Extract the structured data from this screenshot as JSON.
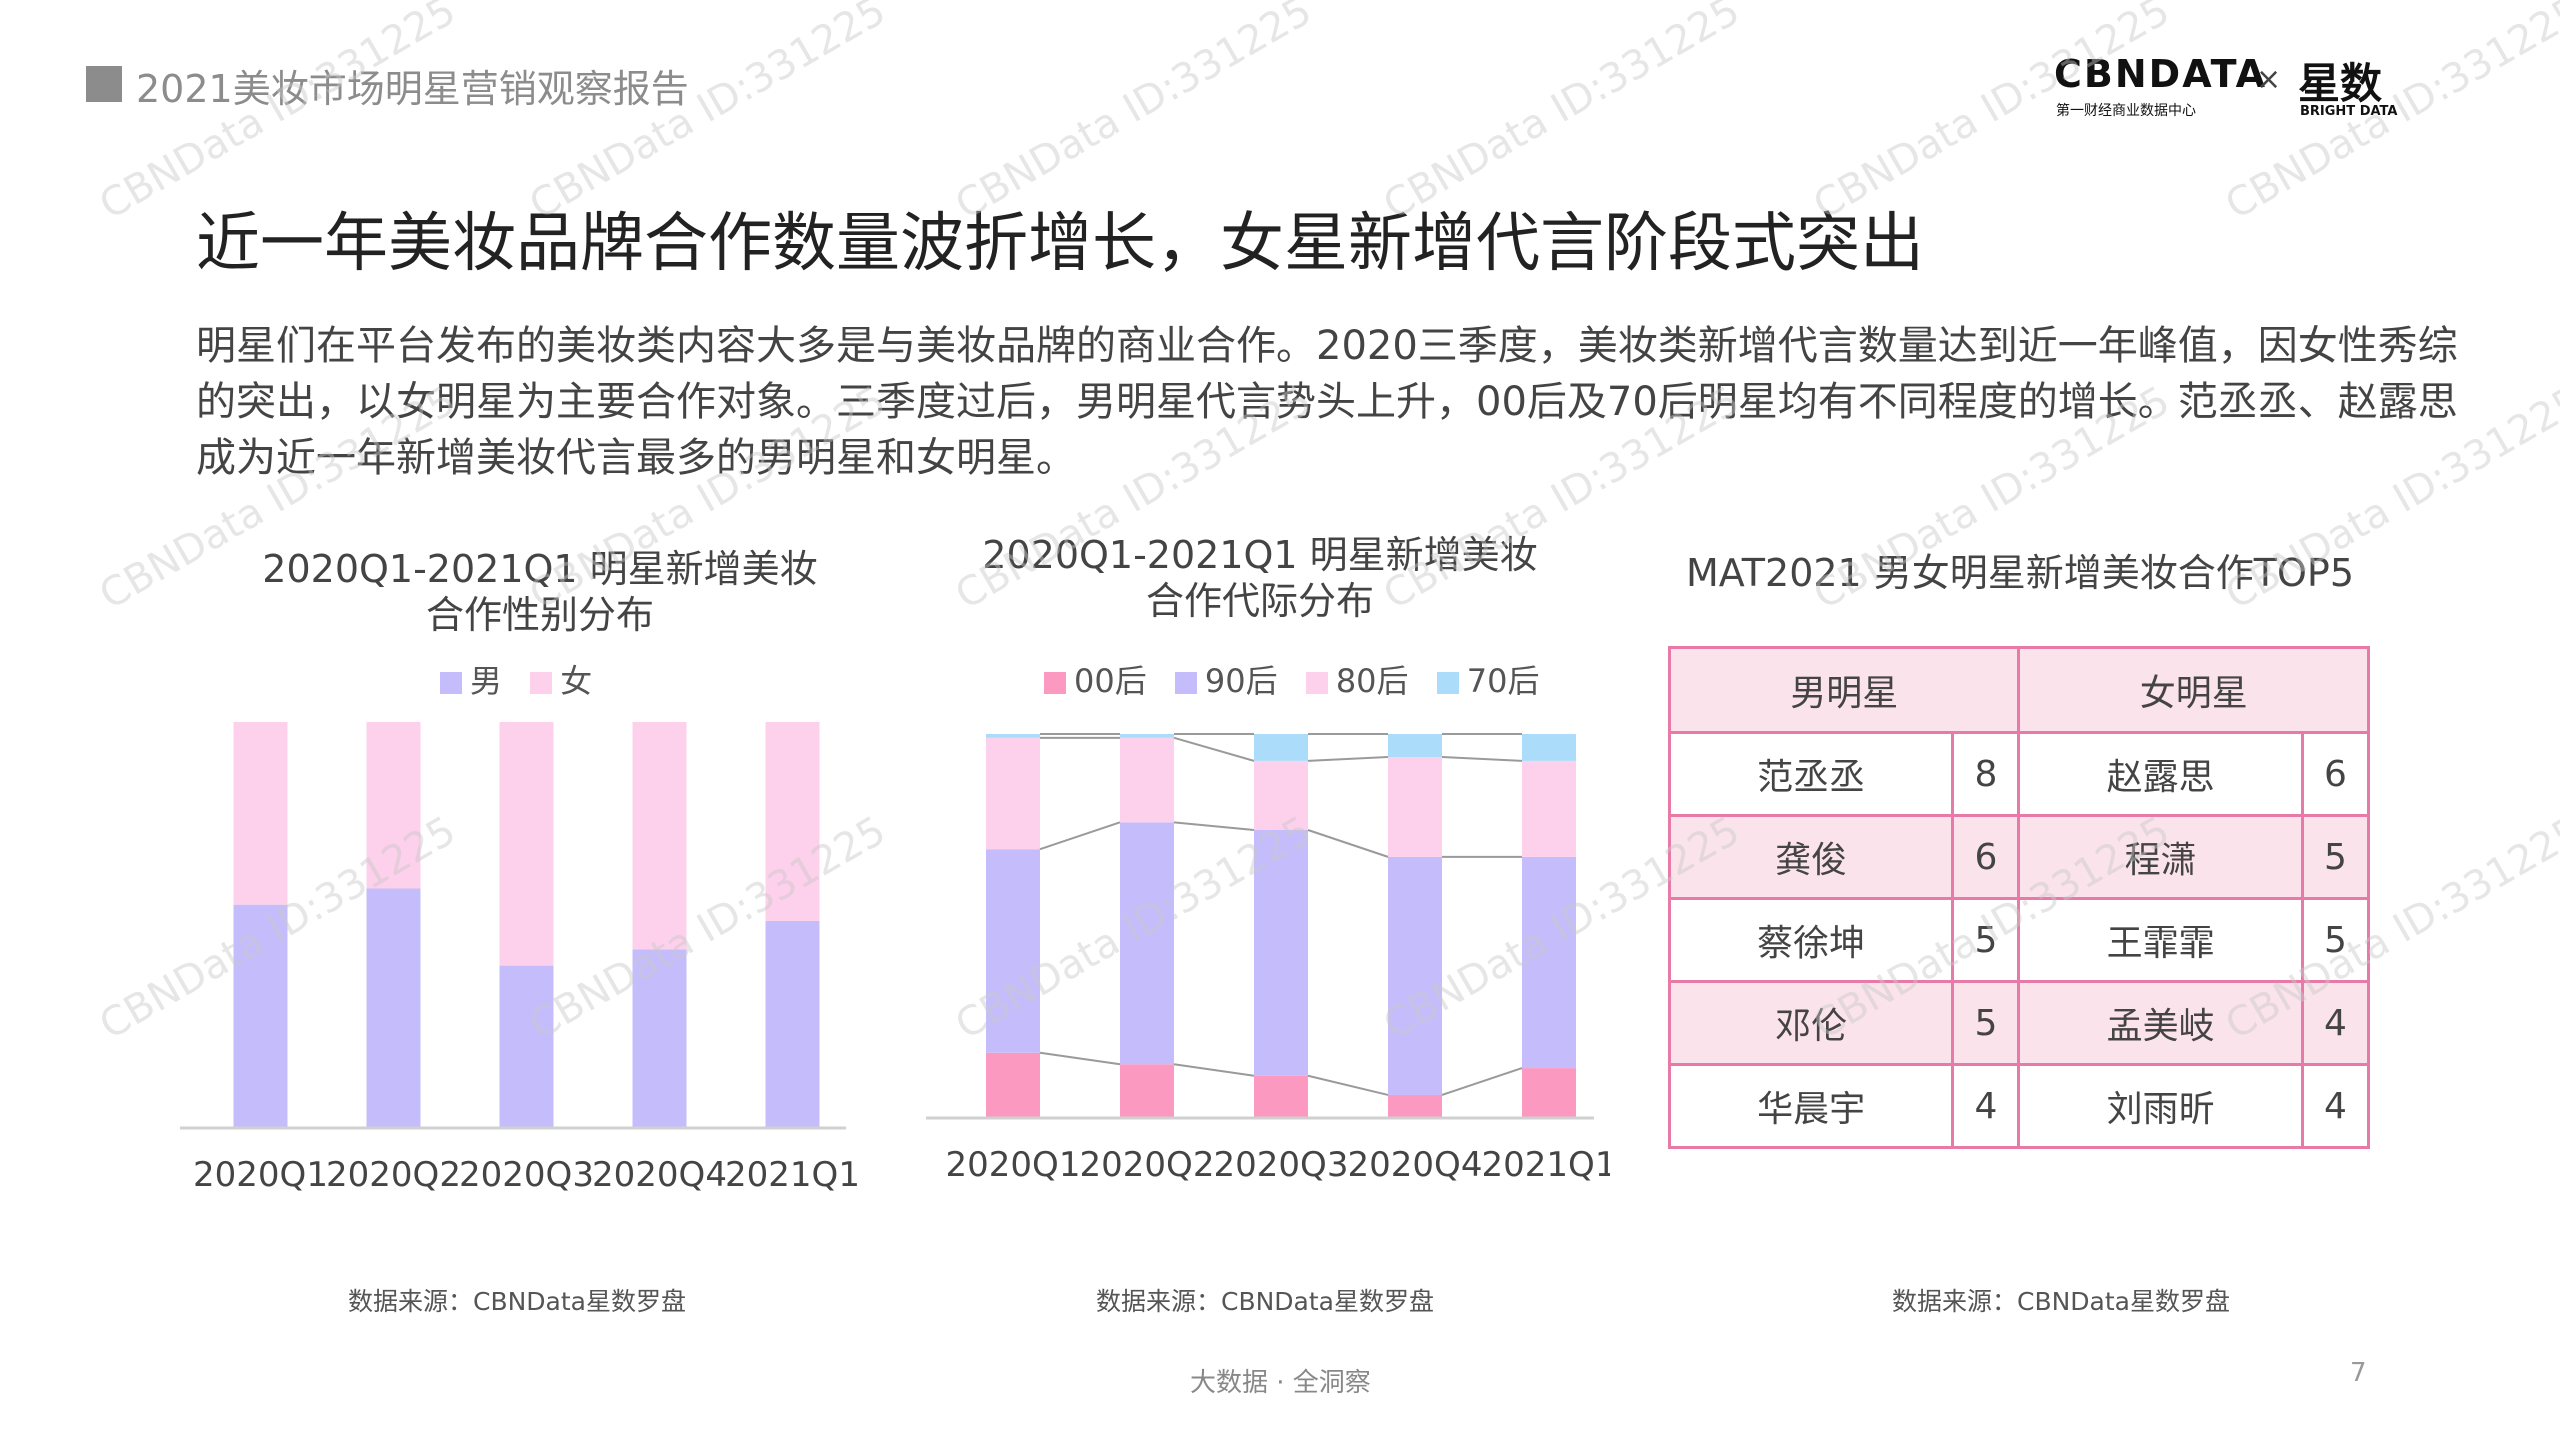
{
  "header": {
    "report_title": "2021美妆市场明星营销观察报告"
  },
  "logo": {
    "cbn": "CBNDATA",
    "cbn_sub": "第一财经商业数据中心",
    "times": "×",
    "xs": "星数",
    "xs_sub": "BRIGHT DATA"
  },
  "main_title": "近一年美妆品牌合作数量波折增长，女星新增代言阶段式突出",
  "intro": "明星们在平台发布的美妆类内容大多是与美妆品牌的商业合作。2020三季度，美妆类新增代言数量达到近一年峰值，因女性秀综的突出，以女明星为主要合作对象。三季度过后，男明星代言势头上升，00后及70后明星均有不同程度的增长。范丞丞、赵露思成为近一年新增美妆代言最多的男明星和女明星。",
  "watermark": "CBNData ID:331225",
  "colors": {
    "male": "#c5bdfb",
    "female": "#fdd0ec",
    "post00": "#fb99c1",
    "post90": "#c5bdfb",
    "post80": "#fdd0ec",
    "post70": "#abdcfa",
    "table_border": "#e87aa7",
    "table_fill": "#fbe3ec"
  },
  "chart_data": [
    {
      "type": "bar",
      "stacked": true,
      "title_line1": "2020Q1-2021Q1 明星新增美妆",
      "title_line2": "合作性别分布",
      "categories": [
        "2020Q1",
        "2020Q2",
        "2020Q3",
        "2020Q4",
        "2021Q1"
      ],
      "series": [
        {
          "name": "男",
          "values": [
            55,
            59,
            40,
            44,
            51
          ]
        },
        {
          "name": "女",
          "values": [
            45,
            41,
            60,
            56,
            49
          ]
        }
      ],
      "ylim": [
        0,
        100
      ],
      "legend": "top",
      "source": "数据来源：CBNData星数罗盘"
    },
    {
      "type": "bar",
      "stacked": true,
      "title_line1": "2020Q1-2021Q1 明星新增美妆",
      "title_line2": "合作代际分布",
      "categories": [
        "2020Q1",
        "2020Q2",
        "2020Q3",
        "2020Q4",
        "2021Q1"
      ],
      "series": [
        {
          "name": "00后",
          "values": [
            17,
            14,
            11,
            6,
            13
          ]
        },
        {
          "name": "90后",
          "values": [
            53,
            63,
            64,
            62,
            55
          ]
        },
        {
          "name": "80后",
          "values": [
            29,
            22,
            18,
            26,
            25
          ]
        },
        {
          "name": "70后",
          "values": [
            1,
            1,
            7,
            6,
            7
          ]
        }
      ],
      "ylim": [
        0,
        100
      ],
      "legend": "top",
      "source": "数据来源：CBNData星数罗盘"
    },
    {
      "type": "table",
      "title": "MAT2021 男女明星新增美妆合作TOP5",
      "columns": [
        "男明星",
        "女明星"
      ],
      "rows": [
        {
          "male": "范丞丞",
          "male_count": "8",
          "female": "赵露思",
          "female_count": "6"
        },
        {
          "male": "龚俊",
          "male_count": "6",
          "female": "程潇",
          "female_count": "5"
        },
        {
          "male": "蔡徐坤",
          "male_count": "5",
          "female": "王霏霏",
          "female_count": "5"
        },
        {
          "male": "邓伦",
          "male_count": "5",
          "female": "孟美岐",
          "female_count": "4"
        },
        {
          "male": "华晨宇",
          "male_count": "4",
          "female": "刘雨昕",
          "female_count": "4"
        }
      ],
      "source": "数据来源：CBNData星数罗盘"
    }
  ],
  "footer": {
    "tagline": "大数据 · 全洞察",
    "page_number": "7"
  }
}
